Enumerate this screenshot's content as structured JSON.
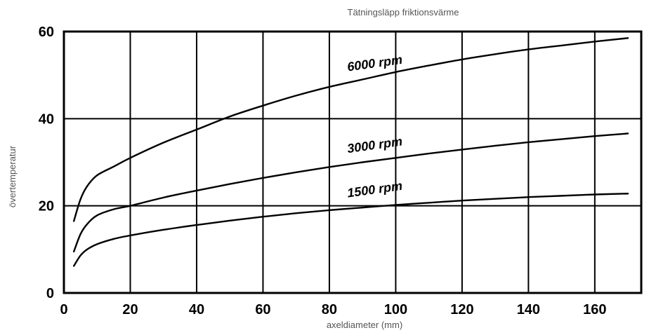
{
  "chart_data": {
    "type": "line",
    "title": "Tätningsläpp friktionsvärme",
    "xlabel": "axeldiameter (mm)",
    "ylabel": "övertemperatur",
    "xlim": [
      0,
      174
    ],
    "ylim": [
      0,
      60
    ],
    "x_ticks": [
      0,
      20,
      40,
      60,
      80,
      100,
      120,
      140,
      160
    ],
    "y_ticks": [
      0,
      20,
      40,
      60
    ],
    "grid": true,
    "series": [
      {
        "name": "6000 rpm",
        "x": [
          3,
          5,
          7,
          10,
          15,
          20,
          30,
          40,
          50,
          60,
          70,
          80,
          90,
          100,
          110,
          120,
          130,
          140,
          150,
          160,
          170
        ],
        "y": [
          16.5,
          21.5,
          24.5,
          27.0,
          29.0,
          31.0,
          34.5,
          37.5,
          40.5,
          43.0,
          45.3,
          47.3,
          49.0,
          50.7,
          52.2,
          53.6,
          54.8,
          55.9,
          56.8,
          57.7,
          58.5
        ]
      },
      {
        "name": "3000 rpm",
        "x": [
          3,
          5,
          7,
          10,
          15,
          20,
          30,
          40,
          50,
          60,
          70,
          80,
          90,
          100,
          110,
          120,
          130,
          140,
          150,
          160,
          170
        ],
        "y": [
          9.5,
          13.5,
          15.8,
          17.8,
          19.2,
          20.0,
          21.9,
          23.5,
          25.0,
          26.4,
          27.7,
          28.9,
          30.0,
          31.0,
          32.0,
          32.9,
          33.8,
          34.6,
          35.3,
          36.0,
          36.6
        ]
      },
      {
        "name": "1500 rpm",
        "x": [
          3,
          5,
          7,
          10,
          15,
          20,
          30,
          40,
          50,
          60,
          70,
          80,
          90,
          100,
          110,
          120,
          130,
          140,
          150,
          160,
          170
        ],
        "y": [
          6.2,
          8.6,
          10.0,
          11.2,
          12.4,
          13.2,
          14.5,
          15.6,
          16.6,
          17.5,
          18.3,
          19.0,
          19.6,
          20.2,
          20.7,
          21.2,
          21.6,
          22.0,
          22.3,
          22.6,
          22.8
        ]
      }
    ]
  }
}
